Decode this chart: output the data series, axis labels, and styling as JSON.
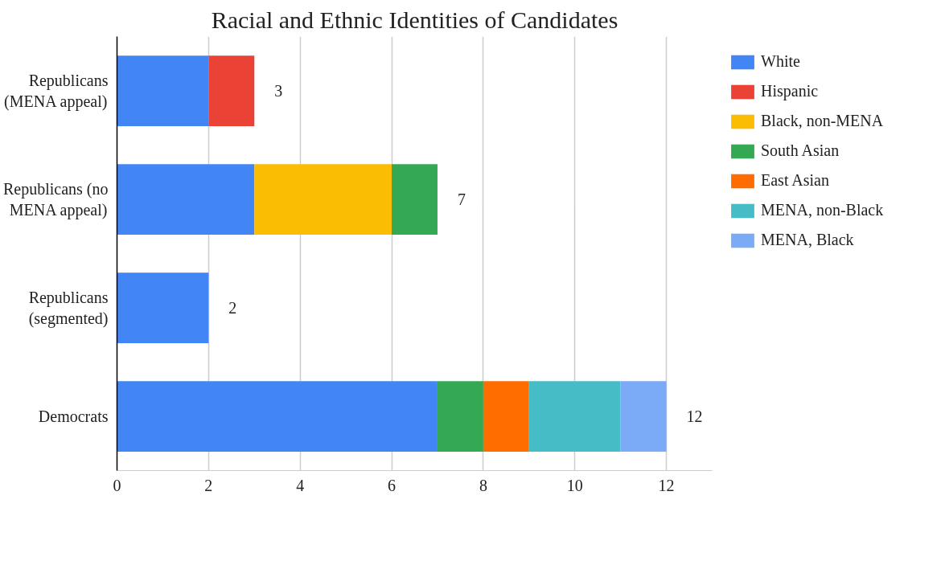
{
  "chart_data": {
    "type": "bar",
    "orientation": "horizontal",
    "stacked": true,
    "title": "Racial and Ethnic Identities of Candidates",
    "categories": [
      "Republicans (MENA appeal)",
      "Republicans (no MENA appeal)",
      "Republicans (segmented)",
      "Democrats"
    ],
    "series": [
      {
        "name": "White",
        "color": "#4285f4",
        "values": [
          2,
          3,
          2,
          7
        ]
      },
      {
        "name": "Hispanic",
        "color": "#ea4335",
        "values": [
          1,
          null,
          null,
          null
        ]
      },
      {
        "name": "Black, non-MENA",
        "color": "#fbbc04",
        "values": [
          null,
          3,
          null,
          null
        ]
      },
      {
        "name": "South Asian",
        "color": "#34a853",
        "values": [
          null,
          1,
          null,
          1
        ]
      },
      {
        "name": "East Asian",
        "color": "#ff6d01",
        "values": [
          null,
          null,
          null,
          1
        ]
      },
      {
        "name": "MENA, non-Black",
        "color": "#46bdc6",
        "values": [
          null,
          null,
          null,
          2
        ]
      },
      {
        "name": "MENA, Black",
        "color": "#7baaf7",
        "values": [
          null,
          null,
          null,
          1
        ]
      }
    ],
    "totals": [
      "3",
      "7",
      "2",
      "12"
    ],
    "xlim": [
      0,
      13
    ],
    "xticks": [
      0,
      2,
      4,
      6,
      8,
      10,
      12
    ],
    "grid": "x",
    "legend": "right"
  }
}
